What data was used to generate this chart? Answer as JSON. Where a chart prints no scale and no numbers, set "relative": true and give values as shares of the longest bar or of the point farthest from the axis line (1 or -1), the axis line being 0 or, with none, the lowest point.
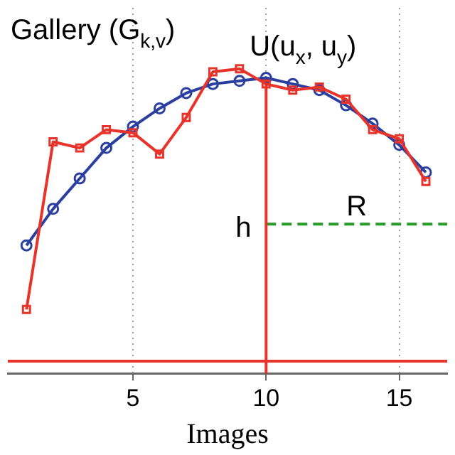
{
  "chart_data": {
    "type": "line",
    "relative": true,
    "xlabel": "Images",
    "xlim": [
      0.3,
      16.8
    ],
    "xticks": [
      5,
      10,
      15
    ],
    "grid": "x",
    "legend": false,
    "series": [
      {
        "color": "#e8332a",
        "marker": "square",
        "x": [
          1,
          2,
          3,
          4,
          5,
          6,
          7,
          8,
          9,
          10,
          11,
          12,
          13,
          14,
          15,
          16
        ],
        "values": [
          0.21,
          0.76,
          0.74,
          0.8,
          0.79,
          0.72,
          0.84,
          0.99,
          1,
          0.95,
          0.93,
          0.94,
          0.9,
          0.8,
          0.77,
          0.63
        ]
      },
      {
        "color": "#2b3fa0",
        "marker": "circle",
        "x": [
          1,
          2,
          3,
          4,
          5,
          6,
          7,
          8,
          9,
          10,
          11,
          12,
          13,
          14,
          15,
          16
        ],
        "values": [
          0.42,
          0.54,
          0.64,
          0.74,
          0.81,
          0.87,
          0.92,
          0.95,
          0.96,
          0.97,
          0.95,
          0.93,
          0.88,
          0.82,
          0.75,
          0.66
        ]
      },
      {
        "name": "h",
        "color": "#e8332a",
        "marker": "none",
        "x": [
          10,
          10
        ],
        "values": [
          0,
          0.97
        ]
      },
      {
        "name": "R",
        "color": "#2a9a2a",
        "marker": "none",
        "line_style": "dashed",
        "x": [
          10,
          16.8
        ],
        "values": [
          0.49,
          0.49
        ]
      }
    ],
    "ref_lines": [
      {
        "axis": "y",
        "value": 0.04,
        "color": "#e8332a"
      }
    ],
    "annotations": [
      "Gallery (G$_{k,v}$)",
      {
        "text": "U(u$_{x}$, u$_{y}$)",
        "x": 10,
        "y": 0.97
      }
    ]
  }
}
